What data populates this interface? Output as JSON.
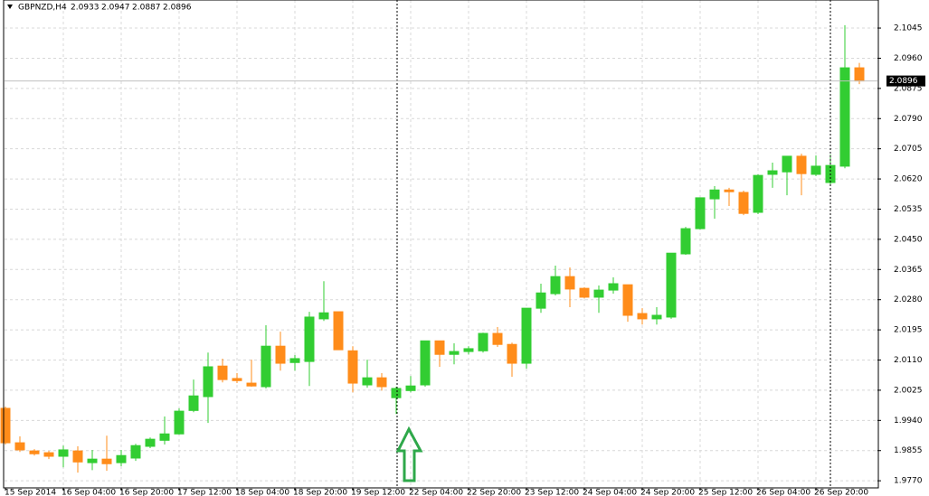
{
  "chart_data": {
    "type": "candlestick",
    "title": "GBPNZD,H4",
    "header_values": [
      2.0933,
      2.0947,
      2.0887,
      2.0896
    ],
    "current_price": 2.0896,
    "up_color": "#32cd32",
    "down_color": "#ff8c1a",
    "grid": true,
    "categories": [
      "15 Sep 2014",
      null,
      null,
      null,
      "16 Sep 04:00",
      null,
      null,
      null,
      "16 Sep 20:00",
      null,
      null,
      null,
      "17 Sep 12:00",
      null,
      null,
      null,
      "18 Sep 04:00",
      null,
      null,
      null,
      "18 Sep 20:00",
      null,
      null,
      null,
      "19 Sep 12:00",
      null,
      null,
      null,
      "22 Sep 04:00",
      null,
      null,
      null,
      "22 Sep 20:00",
      null,
      null,
      null,
      "23 Sep 12:00",
      null,
      null,
      null,
      "24 Sep 04:00",
      null,
      null,
      null,
      "24 Sep 20:00",
      null,
      null,
      null,
      "25 Sep 12:00",
      null,
      null,
      null,
      "26 Sep 04:00",
      null,
      null,
      null,
      "26 Sep 20:00",
      null,
      null,
      null
    ],
    "open": [
      1.9974,
      1.9877,
      1.9854,
      1.9849,
      1.9839,
      1.9854,
      1.9821,
      1.9831,
      1.9821,
      1.9834,
      1.9867,
      1.9884,
      1.9902,
      1.9968,
      2.0007,
      2.0093,
      2.0058,
      2.0045,
      2.0035,
      2.0149,
      2.0103,
      2.0106,
      2.0226,
      2.0246,
      2.0136,
      2.004,
      2.006,
      2.0004,
      2.0024,
      2.004,
      2.0164,
      2.0126,
      2.0134,
      2.0136,
      2.0185,
      2.0154,
      2.0101,
      2.0256,
      2.0297,
      2.0345,
      2.0312,
      2.0287,
      2.0307,
      2.0322,
      2.0241,
      2.0226,
      2.0231,
      2.0409,
      2.048,
      2.0564,
      2.0589,
      2.0582,
      2.0526,
      2.0633,
      2.064,
      2.0684,
      2.0633,
      2.061,
      2.0656,
      2.0933
    ],
    "high": [
      1.9979,
      1.9895,
      1.9859,
      1.9854,
      1.9869,
      1.9867,
      1.9857,
      1.9897,
      1.9857,
      1.9874,
      1.9892,
      1.9951,
      1.9974,
      2.0055,
      2.0131,
      2.0114,
      2.0073,
      2.0111,
      2.0208,
      2.019,
      2.0124,
      2.0246,
      2.0332,
      2.0246,
      2.0149,
      2.0111,
      2.0073,
      2.0035,
      2.0065,
      2.0164,
      2.0164,
      2.0157,
      2.0149,
      2.0187,
      2.0203,
      2.0159,
      2.0256,
      2.0325,
      2.0376,
      2.0371,
      2.0315,
      2.032,
      2.0343,
      2.0322,
      2.0256,
      2.0259,
      2.0411,
      2.0485,
      2.0567,
      2.06,
      2.0595,
      2.0587,
      2.0633,
      2.0666,
      2.0684,
      2.0691,
      2.0686,
      2.0689,
      2.1053,
      2.0947
    ],
    "low": [
      1.9872,
      1.9851,
      1.9841,
      1.9831,
      1.9808,
      1.9793,
      1.98,
      1.9798,
      1.9811,
      1.9826,
      1.9862,
      1.9872,
      1.99,
      1.9963,
      1.9933,
      2.0047,
      2.0045,
      2.0035,
      2.003,
      2.008,
      2.008,
      2.0037,
      2.022,
      2.0139,
      2.0019,
      2.0032,
      2.0024,
      1.9958,
      2.0019,
      2.0035,
      2.0091,
      2.0098,
      2.0126,
      2.0131,
      2.0147,
      2.0063,
      2.0086,
      2.0243,
      2.0292,
      2.0259,
      2.0284,
      2.0243,
      2.0297,
      2.0218,
      2.021,
      2.021,
      2.0226,
      2.0406,
      2.0478,
      2.0508,
      2.0544,
      2.0518,
      2.0521,
      2.0595,
      2.0574,
      2.0574,
      2.0628,
      2.0605,
      2.065,
      2.0887
    ],
    "close": [
      1.9877,
      1.9857,
      1.9846,
      1.9839,
      1.9857,
      1.9823,
      1.9831,
      1.9818,
      1.9841,
      1.9869,
      1.9887,
      1.9902,
      1.9966,
      2.0009,
      2.0091,
      2.0055,
      2.0052,
      2.0037,
      2.0149,
      2.0101,
      2.0114,
      2.0231,
      2.0243,
      2.0139,
      2.0045,
      2.006,
      2.0035,
      2.003,
      2.0037,
      2.0164,
      2.0126,
      2.0134,
      2.0142,
      2.0185,
      2.0154,
      2.0101,
      2.0256,
      2.0299,
      2.0345,
      2.031,
      2.0287,
      2.0307,
      2.0325,
      2.0236,
      2.0226,
      2.0236,
      2.0411,
      2.048,
      2.0567,
      2.0589,
      2.0584,
      2.0523,
      2.063,
      2.0643,
      2.0684,
      2.0635,
      2.0656,
      2.0658,
      2.0933,
      2.0896
    ],
    "ylim": [
      1.975,
      2.1124
    ],
    "yticks": [
      2.1045,
      {
        "value": 2.096,
        "label": "2.0960"
      },
      2.0875,
      {
        "value": 2.079,
        "label": "2.0790"
      },
      2.0705,
      {
        "value": 2.062,
        "label": "2.0620"
      },
      2.0535,
      {
        "value": 2.045,
        "label": "2.0450"
      },
      2.0365,
      {
        "value": 2.028,
        "label": "2.0280"
      },
      2.0195,
      {
        "value": 2.011,
        "label": "2.0110"
      },
      2.0025,
      {
        "value": 1.994,
        "label": "1.9940"
      },
      1.9855,
      {
        "value": 1.977,
        "label": "1.9770"
      }
    ]
  }
}
